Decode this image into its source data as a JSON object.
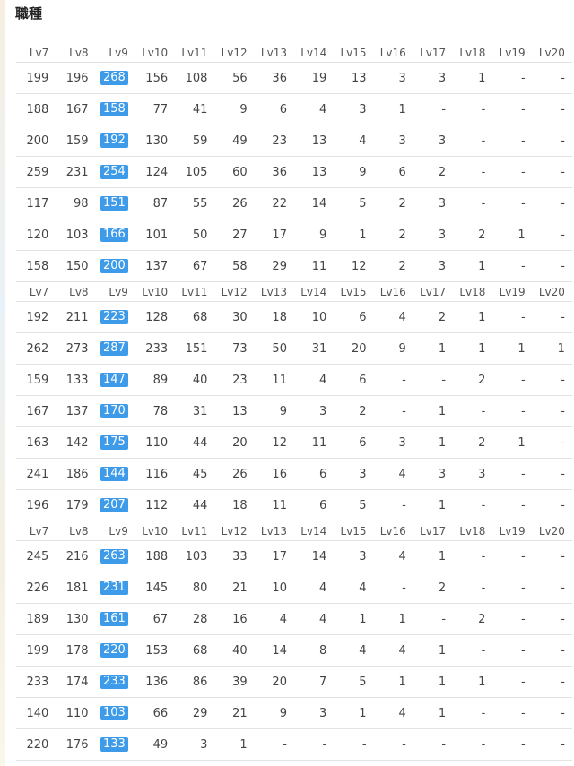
{
  "page": {
    "heading": "職種"
  },
  "table": {
    "columns": [
      "Lv7",
      "Lv8",
      "Lv9",
      "Lv10",
      "Lv11",
      "Lv12",
      "Lv13",
      "Lv14",
      "Lv15",
      "Lv16",
      "Lv17",
      "Lv18",
      "Lv19",
      "Lv20"
    ],
    "highlight_column": 2,
    "highlight_color": "#3d9be9",
    "groups": [
      {
        "rows": [
          [
            "199",
            "196",
            "268",
            "156",
            "108",
            "56",
            "36",
            "19",
            "13",
            "3",
            "3",
            "1",
            "-",
            "-"
          ],
          [
            "188",
            "167",
            "158",
            "77",
            "41",
            "9",
            "6",
            "4",
            "3",
            "1",
            "-",
            "-",
            "-",
            "-"
          ],
          [
            "200",
            "159",
            "192",
            "130",
            "59",
            "49",
            "23",
            "13",
            "4",
            "3",
            "3",
            "-",
            "-",
            "-"
          ],
          [
            "259",
            "231",
            "254",
            "124",
            "105",
            "60",
            "36",
            "13",
            "9",
            "6",
            "2",
            "-",
            "-",
            "-"
          ],
          [
            "117",
            "98",
            "151",
            "87",
            "55",
            "26",
            "22",
            "14",
            "5",
            "2",
            "3",
            "-",
            "-",
            "-"
          ],
          [
            "120",
            "103",
            "166",
            "101",
            "50",
            "27",
            "17",
            "9",
            "1",
            "2",
            "3",
            "2",
            "1",
            "-"
          ],
          [
            "158",
            "150",
            "200",
            "137",
            "67",
            "58",
            "29",
            "11",
            "12",
            "2",
            "3",
            "1",
            "-",
            "-"
          ]
        ]
      },
      {
        "rows": [
          [
            "192",
            "211",
            "223",
            "128",
            "68",
            "30",
            "18",
            "10",
            "6",
            "4",
            "2",
            "1",
            "-",
            "-"
          ],
          [
            "262",
            "273",
            "287",
            "233",
            "151",
            "73",
            "50",
            "31",
            "20",
            "9",
            "1",
            "1",
            "1",
            "1"
          ],
          [
            "159",
            "133",
            "147",
            "89",
            "40",
            "23",
            "11",
            "4",
            "6",
            "-",
            "-",
            "2",
            "-",
            "-"
          ],
          [
            "167",
            "137",
            "170",
            "78",
            "31",
            "13",
            "9",
            "3",
            "2",
            "-",
            "1",
            "-",
            "-",
            "-"
          ],
          [
            "163",
            "142",
            "175",
            "110",
            "44",
            "20",
            "12",
            "11",
            "6",
            "3",
            "1",
            "2",
            "1",
            "-"
          ],
          [
            "241",
            "186",
            "144",
            "116",
            "45",
            "26",
            "16",
            "6",
            "3",
            "4",
            "3",
            "3",
            "-",
            "-"
          ],
          [
            "196",
            "179",
            "207",
            "112",
            "44",
            "18",
            "11",
            "6",
            "5",
            "-",
            "1",
            "-",
            "-",
            "-"
          ]
        ]
      },
      {
        "rows": [
          [
            "245",
            "216",
            "263",
            "188",
            "103",
            "33",
            "17",
            "14",
            "3",
            "4",
            "1",
            "-",
            "-",
            "-"
          ],
          [
            "226",
            "181",
            "231",
            "145",
            "80",
            "21",
            "10",
            "4",
            "4",
            "-",
            "2",
            "-",
            "-",
            "-"
          ],
          [
            "189",
            "130",
            "161",
            "67",
            "28",
            "16",
            "4",
            "4",
            "1",
            "1",
            "-",
            "2",
            "-",
            "-"
          ],
          [
            "199",
            "178",
            "220",
            "153",
            "68",
            "40",
            "14",
            "8",
            "4",
            "4",
            "1",
            "-",
            "-",
            "-"
          ],
          [
            "233",
            "174",
            "233",
            "136",
            "86",
            "39",
            "20",
            "7",
            "5",
            "1",
            "1",
            "1",
            "-",
            "-"
          ],
          [
            "140",
            "110",
            "103",
            "66",
            "29",
            "21",
            "9",
            "3",
            "1",
            "4",
            "1",
            "-",
            "-",
            "-"
          ],
          [
            "220",
            "176",
            "133",
            "49",
            "3",
            "1",
            "-",
            "-",
            "-",
            "-",
            "-",
            "-",
            "-",
            "-"
          ]
        ]
      }
    ]
  }
}
